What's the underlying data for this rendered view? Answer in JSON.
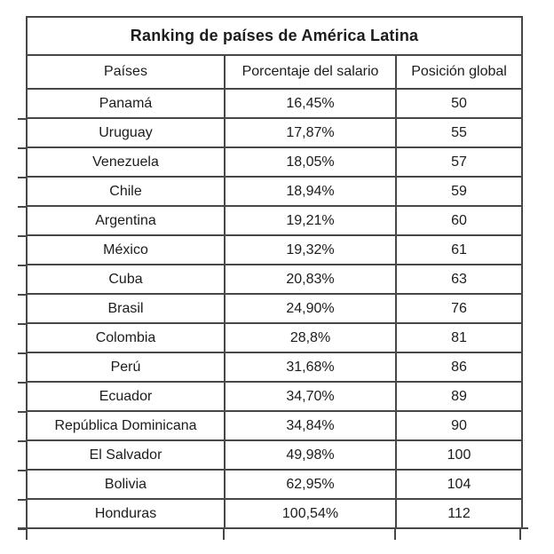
{
  "chart_data": {
    "type": "table",
    "title": "Ranking de países de América Latina",
    "columns": [
      "Países",
      "Porcentaje del salario",
      "Posición global"
    ],
    "rows": [
      [
        "Panamá",
        "16,45%",
        "50"
      ],
      [
        "Uruguay",
        "17,87%",
        "55"
      ],
      [
        "Venezuela",
        "18,05%",
        "57"
      ],
      [
        "Chile",
        "18,94%",
        "59"
      ],
      [
        "Argentina",
        "19,21%",
        "60"
      ],
      [
        "México",
        "19,32%",
        "61"
      ],
      [
        "Cuba",
        "20,83%",
        "63"
      ],
      [
        "Brasil",
        "24,90%",
        "76"
      ],
      [
        "Colombia",
        "28,8%",
        "81"
      ],
      [
        "Perú",
        "31,68%",
        "86"
      ],
      [
        "Ecuador",
        "34,70%",
        "89"
      ],
      [
        "República Dominicana",
        "34,84%",
        "90"
      ],
      [
        "El Salvador",
        "49,98%",
        "100"
      ],
      [
        "Bolivia",
        "62,95%",
        "104"
      ],
      [
        "Honduras",
        "100,54%",
        "112"
      ]
    ],
    "percent_values_numeric": [
      16.45,
      17.87,
      18.05,
      18.94,
      19.21,
      19.32,
      20.83,
      24.9,
      28.8,
      31.68,
      34.7,
      34.84,
      49.98,
      62.95,
      100.54
    ],
    "position_values_numeric": [
      50,
      55,
      57,
      59,
      60,
      61,
      63,
      76,
      81,
      86,
      89,
      90,
      100,
      104,
      112
    ],
    "layout": {
      "grid": "on",
      "text_align": "center"
    },
    "colors": {
      "border": "#474747",
      "text": "#1c1c1c",
      "background": "#ffffff"
    }
  }
}
